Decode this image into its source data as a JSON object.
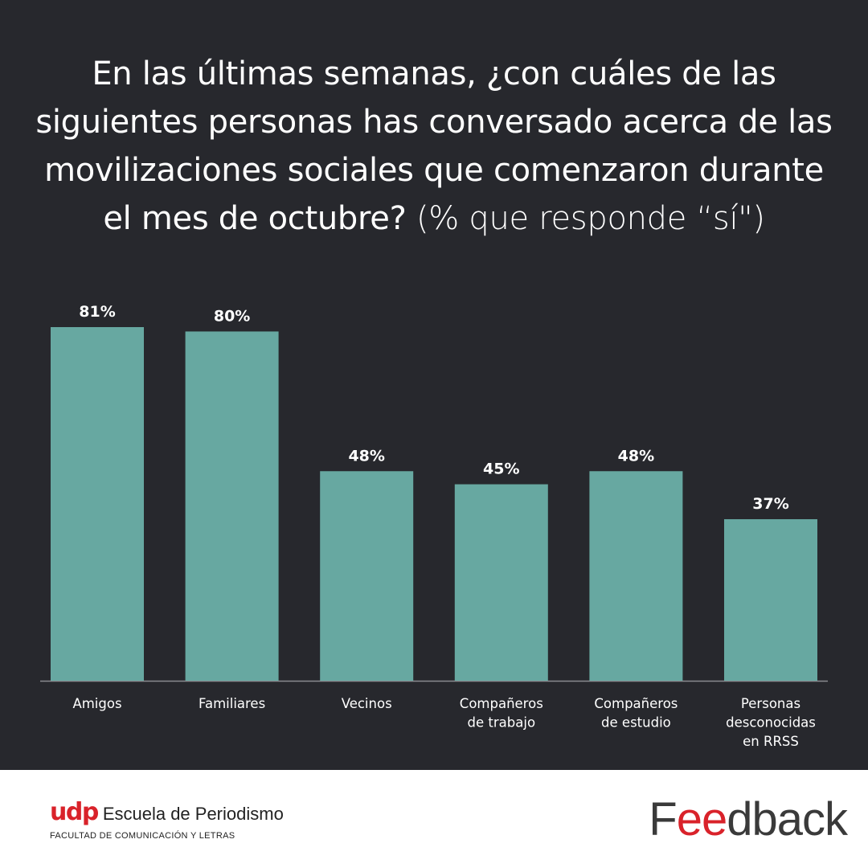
{
  "title": {
    "main": "En las últimas semanas, ¿con cuáles de las siguientes personas has conversado acerca de las movilizaciones sociales que comenzaron durante el mes de octubre?",
    "sub": "(% que responde “sí\")"
  },
  "chart_data": {
    "type": "bar",
    "categories": [
      [
        "Amigos"
      ],
      [
        "Familiares"
      ],
      [
        "Vecinos"
      ],
      [
        "Compañeros",
        "de trabajo"
      ],
      [
        "Compañeros",
        "de estudio"
      ],
      [
        "Personas",
        "desconocidas",
        "en RRSS"
      ]
    ],
    "values": [
      81,
      80,
      48,
      45,
      48,
      37
    ],
    "value_labels": [
      "81%",
      "80%",
      "48%",
      "45%",
      "48%",
      "37%"
    ],
    "ylim": [
      0,
      100
    ],
    "grid": false,
    "bar_color": "#67a8a1"
  },
  "colors": {
    "background": "#27282d",
    "text": "#ffffff",
    "bar": "#67a8a1",
    "accent": "#d9222a"
  },
  "footer": {
    "udp_mark": "udp",
    "udp_school": "Escuela de Periodismo",
    "udp_faculty": "FACULTAD DE COMUNICACIÓN Y LETRAS",
    "feedback_logo": "Feedback"
  }
}
